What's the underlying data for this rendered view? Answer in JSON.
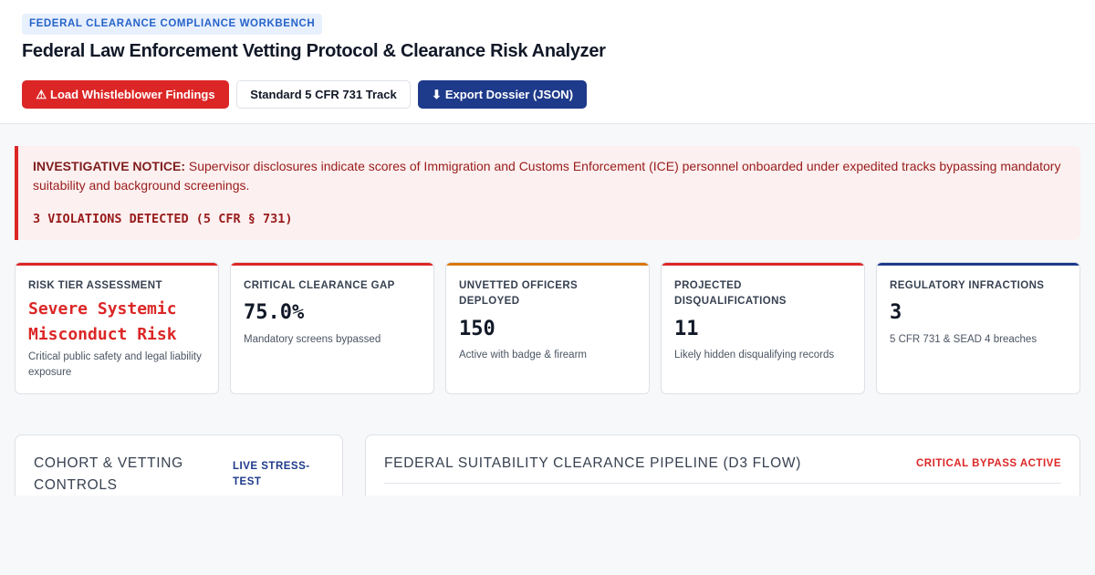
{
  "header": {
    "badge": "FEDERAL CLEARANCE COMPLIANCE WORKBENCH",
    "title": "Federal Law Enforcement Vetting Protocol & Clearance Risk Analyzer",
    "buttons": {
      "load": {
        "icon": "⚠",
        "icon_name": "warning-icon",
        "label": "Load Whistleblower Findings"
      },
      "track": {
        "label": "Standard 5 CFR 731 Track"
      },
      "export": {
        "icon": "⬇",
        "icon_name": "download-icon",
        "label": "Export Dossier (JSON)"
      }
    }
  },
  "notice": {
    "heading": "INVESTIGATIVE NOTICE:",
    "body": " Supervisor disclosures indicate scores of Immigration and Customs Enforcement (ICE) personnel onboarded under expedited tracks bypassing mandatory suitability and background screenings.",
    "violations": "3 VIOLATIONS DETECTED (5 CFR § 731)"
  },
  "cards": [
    {
      "label": "RISK TIER ASSESSMENT",
      "value": "Severe Systemic Misconduct Risk",
      "sub": "Critical public safety and legal liability exposure",
      "accent": "#dc2626",
      "value_color": "#dc2626"
    },
    {
      "label": "CRITICAL CLEARANCE GAP",
      "value": "75.0%",
      "sub": "Mandatory screens bypassed",
      "accent": "#dc2626",
      "value_color": "#111827"
    },
    {
      "label": "UNVETTED OFFICERS DEPLOYED",
      "value": "150",
      "sub": "Active with badge & firearm",
      "accent": "#d97706",
      "value_color": "#111827"
    },
    {
      "label": "PROJECTED DISQUALIFICATIONS",
      "value": "11",
      "sub": "Likely hidden disqualifying records",
      "accent": "#dc2626",
      "value_color": "#111827"
    },
    {
      "label": "REGULATORY INFRACTIONS",
      "value": "3",
      "sub": "5 CFR 731 & SEAD 4 breaches",
      "accent": "#1e3a8a",
      "value_color": "#111827"
    }
  ],
  "panels": {
    "left": {
      "title": "COHORT & VETTING CONTROLS",
      "tag": "LIVE STRESS-TEST",
      "tag_color": "#1e3a8a"
    },
    "right": {
      "title": "FEDERAL SUITABILITY CLEARANCE PIPELINE (D3 FLOW)",
      "tag": "CRITICAL BYPASS ACTIVE",
      "tag_color": "#dc2626"
    }
  }
}
